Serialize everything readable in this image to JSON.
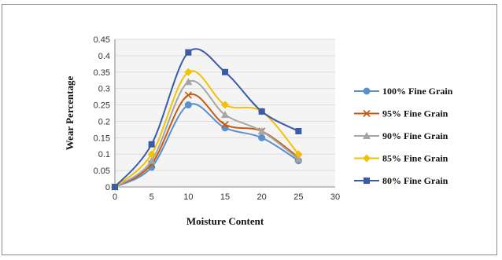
{
  "chart_data": {
    "type": "line",
    "title": "",
    "xlabel": "Moisture Content",
    "ylabel": "Wear Percentage",
    "x": [
      0,
      5,
      10,
      15,
      20,
      25
    ],
    "xlim": [
      0,
      30
    ],
    "xticks": [
      "0",
      "5",
      "10",
      "15",
      "20",
      "25",
      "30"
    ],
    "ylim": [
      0,
      0.45
    ],
    "yticks": [
      "0",
      "0.05",
      "0.1",
      "0.15",
      "0.2",
      "0.25",
      "0.3",
      "0.35",
      "0.4",
      "0.45"
    ],
    "grid": "horizontal",
    "legend": "right",
    "series": [
      {
        "name": "100% Fine Grain",
        "color": "#5b8fcf",
        "marker": "circle",
        "values": [
          0,
          0.06,
          0.25,
          0.18,
          0.15,
          0.08
        ]
      },
      {
        "name": "95% Fine Grain",
        "color": "#c55a11",
        "marker": "x",
        "values": [
          0,
          0.07,
          0.28,
          0.19,
          0.17,
          0.09
        ]
      },
      {
        "name": "90% Fine Grain",
        "color": "#a5a5a5",
        "marker": "triangle",
        "values": [
          0,
          0.08,
          0.32,
          0.22,
          0.17,
          0.085
        ]
      },
      {
        "name": "85% Fine Grain",
        "color": "#f2c200",
        "marker": "diamond",
        "values": [
          0,
          0.1,
          0.35,
          0.25,
          0.23,
          0.1
        ]
      },
      {
        "name": "80% Fine Grain",
        "color": "#3a5ba8",
        "marker": "square",
        "values": [
          0,
          0.13,
          0.41,
          0.35,
          0.23,
          0.17
        ]
      }
    ]
  }
}
